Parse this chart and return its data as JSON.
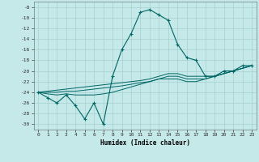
{
  "x": [
    0,
    1,
    2,
    3,
    4,
    5,
    6,
    7,
    8,
    9,
    10,
    11,
    12,
    13,
    14,
    15,
    16,
    17,
    18,
    19,
    20,
    21,
    22,
    23
  ],
  "y_main": [
    -24,
    -25,
    -26,
    -24.5,
    -26.5,
    -29,
    -26,
    -30,
    -21,
    -16,
    -13,
    -9,
    -8.5,
    -9.5,
    -10.5,
    -15,
    -17.5,
    -18,
    -21,
    -21,
    -20,
    -20,
    -19,
    -19
  ],
  "y_line1": [
    -24,
    -23.8,
    -23.6,
    -23.4,
    -23.2,
    -23,
    -22.8,
    -22.6,
    -22.4,
    -22.2,
    -22,
    -21.8,
    -21.5,
    -21,
    -20.5,
    -20.5,
    -21,
    -21,
    -21,
    -21,
    -20.5,
    -20,
    -19.5,
    -19
  ],
  "y_line2": [
    -24,
    -24,
    -24,
    -23.8,
    -23.8,
    -23.6,
    -23.4,
    -23.2,
    -23,
    -22.8,
    -22.5,
    -22.2,
    -22,
    -21.5,
    -21,
    -21,
    -21.5,
    -21.5,
    -21.5,
    -21,
    -20.5,
    -20,
    -19.5,
    -19
  ],
  "y_line3": [
    -24,
    -24.3,
    -24.5,
    -24.3,
    -24.5,
    -24.5,
    -24.5,
    -24.3,
    -24,
    -23.5,
    -23,
    -22.5,
    -22,
    -21.5,
    -21.5,
    -21.5,
    -22,
    -22,
    -21.5,
    -21,
    -20.5,
    -20,
    -19.5,
    -19
  ],
  "bg_color": "#c5e8e8",
  "grid_color": "#a8d0d0",
  "line_color": "#006666",
  "xlabel": "Humidex (Indice chaleur)",
  "ylim": [
    -31,
    -7
  ],
  "xlim": [
    -0.5,
    23.5
  ],
  "yticks": [
    -8,
    -10,
    -12,
    -14,
    -16,
    -18,
    -20,
    -22,
    -24,
    -26,
    -28,
    -30
  ],
  "xticks": [
    0,
    1,
    2,
    3,
    4,
    5,
    6,
    7,
    8,
    9,
    10,
    11,
    12,
    13,
    14,
    15,
    16,
    17,
    18,
    19,
    20,
    21,
    22,
    23
  ]
}
